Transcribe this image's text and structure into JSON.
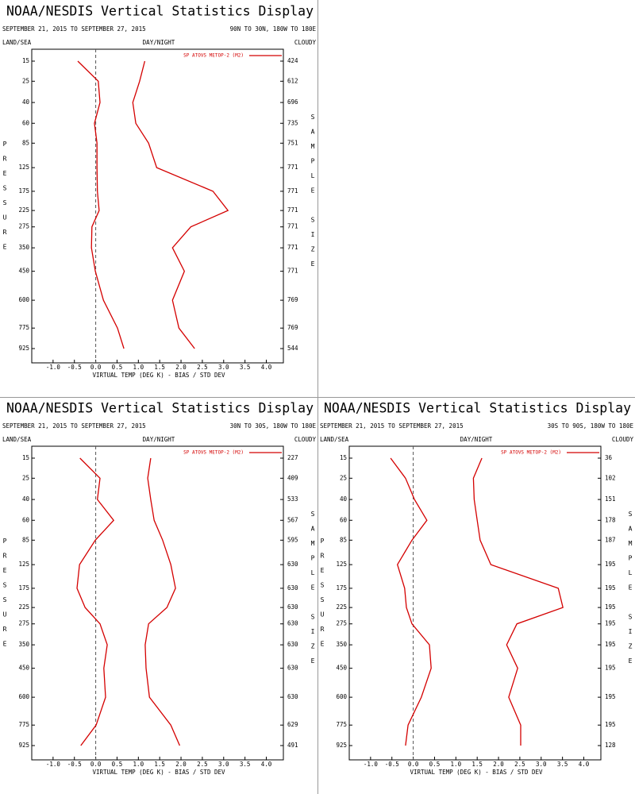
{
  "chart_data": [
    {
      "type": "line",
      "title": "NOAA/NESDIS Vertical Statistics Display",
      "subtitle": "SEPTEMBER 21, 2015 TO SEPTEMBER 27, 2015",
      "region": "90N TO 30N, 180W TO 180E",
      "land_sea_label": "LAND/SEA",
      "day_night_label": "DAY/NIGHT",
      "cloudy_label": "CLOUDY",
      "ylabel": "PRESSURE",
      "y2label": "SAMPLE SIZE",
      "xlabel": "VIRTUAL TEMP (DEG K) - BIAS / STD DEV",
      "y": [
        15,
        25,
        40,
        60,
        85,
        125,
        175,
        225,
        275,
        350,
        450,
        600,
        775,
        925
      ],
      "sample_size": [
        424,
        612,
        696,
        735,
        751,
        771,
        771,
        771,
        771,
        771,
        771,
        769,
        769,
        544
      ],
      "series": [
        {
          "name": "SP ATOVS METOP-2 (M2)",
          "color": "#d40000",
          "values": [
            -0.42,
            0.06,
            0.1,
            -0.03,
            0.03,
            0.03,
            0.04,
            0.08,
            -0.09,
            -0.1,
            -0.01,
            0.18,
            0.51,
            0.66
          ],
          "std_dev": [
            1.15,
            1.03,
            0.87,
            0.94,
            1.24,
            1.43,
            2.75,
            3.1,
            2.23,
            1.8,
            2.08,
            1.8,
            1.95,
            2.32
          ]
        }
      ],
      "xlim": [
        -1.5,
        4.4
      ],
      "xticks": [
        {
          "value": -1,
          "label": "-1.0"
        },
        -0.5,
        {
          "value": 0,
          "label": "0.0"
        },
        0.5,
        {
          "value": 1,
          "label": "1.0"
        },
        1.5,
        {
          "value": 2,
          "label": "2.0"
        },
        2.5,
        {
          "value": 3,
          "label": "3.0"
        },
        3.5,
        {
          "value": 4,
          "label": "4.0"
        }
      ],
      "reference_line": 0,
      "legend": "upper right"
    },
    {
      "type": "line",
      "title": "NOAA/NESDIS Vertical Statistics Display",
      "subtitle": "SEPTEMBER 21, 2015 TO SEPTEMBER 27, 2015",
      "region": "30N TO 30S, 180W TO 180E",
      "land_sea_label": "LAND/SEA",
      "day_night_label": "DAY/NIGHT",
      "cloudy_label": "CLOUDY",
      "ylabel": "PRESSURE",
      "y2label": "SAMPLE SIZE",
      "xlabel": "VIRTUAL TEMP (DEG K) - BIAS / STD DEV",
      "y": [
        15,
        25,
        40,
        60,
        85,
        125,
        175,
        225,
        275,
        350,
        450,
        600,
        775,
        925
      ],
      "sample_size": [
        227,
        409,
        533,
        567,
        595,
        630,
        630,
        630,
        630,
        630,
        630,
        630,
        629,
        491
      ],
      "series": [
        {
          "name": "SP ATOVS METOP-2 (M2)",
          "color": "#d40000",
          "values": [
            -0.37,
            0.1,
            0.04,
            0.42,
            -0.01,
            -0.38,
            -0.44,
            -0.25,
            0.1,
            0.27,
            0.19,
            0.23,
            0.01,
            -0.35
          ],
          "std_dev": [
            1.29,
            1.22,
            1.29,
            1.37,
            1.57,
            1.76,
            1.87,
            1.67,
            1.24,
            1.16,
            1.18,
            1.26,
            1.76,
            1.97
          ]
        }
      ],
      "xlim": [
        -1.5,
        4.4
      ],
      "xticks": [
        {
          "value": -1,
          "label": "-1.0"
        },
        -0.5,
        {
          "value": 0,
          "label": "0.0"
        },
        0.5,
        {
          "value": 1,
          "label": "1.0"
        },
        1.5,
        {
          "value": 2,
          "label": "2.0"
        },
        2.5,
        {
          "value": 3,
          "label": "3.0"
        },
        3.5,
        {
          "value": 4,
          "label": "4.0"
        }
      ],
      "reference_line": 0,
      "legend": "upper right"
    },
    {
      "type": "line",
      "title": "NOAA/NESDIS Vertical Statistics Display",
      "subtitle": "SEPTEMBER 21, 2015 TO SEPTEMBER 27, 2015",
      "region": "30S TO 90S, 180W TO 180E",
      "land_sea_label": "LAND/SEA",
      "day_night_label": "DAY/NIGHT",
      "cloudy_label": "CLOUDY",
      "ylabel": "PRESSURE",
      "y2label": "SAMPLE SIZE",
      "xlabel": "VIRTUAL TEMP (DEG K) - BIAS / STD DEV",
      "y": [
        15,
        25,
        40,
        60,
        85,
        125,
        175,
        225,
        275,
        350,
        450,
        600,
        775,
        925
      ],
      "sample_size": [
        36,
        102,
        151,
        178,
        187,
        195,
        195,
        195,
        195,
        195,
        195,
        195,
        195,
        128
      ],
      "series": [
        {
          "name": "SP ATOVS METOP-2 (M2)",
          "color": "#d40000",
          "values": [
            -0.53,
            -0.18,
            0.03,
            0.32,
            -0.03,
            -0.37,
            -0.2,
            -0.16,
            -0.03,
            0.38,
            0.42,
            0.19,
            -0.12,
            -0.18
          ],
          "std_dev": [
            1.61,
            1.41,
            1.43,
            1.5,
            1.57,
            1.82,
            3.4,
            3.51,
            2.43,
            2.19,
            2.45,
            2.24,
            2.52,
            2.52
          ]
        }
      ],
      "xlim": [
        -1.5,
        4.4
      ],
      "xticks": [
        {
          "value": -1,
          "label": "-1.0"
        },
        -0.5,
        {
          "value": 0,
          "label": "0.0"
        },
        0.5,
        {
          "value": 1,
          "label": "1.0"
        },
        1.5,
        {
          "value": 2,
          "label": "2.0"
        },
        2.5,
        {
          "value": 3,
          "label": "3.0"
        },
        3.5,
        {
          "value": 4,
          "label": "4.0"
        }
      ],
      "reference_line": 0,
      "legend": "upper right"
    }
  ]
}
